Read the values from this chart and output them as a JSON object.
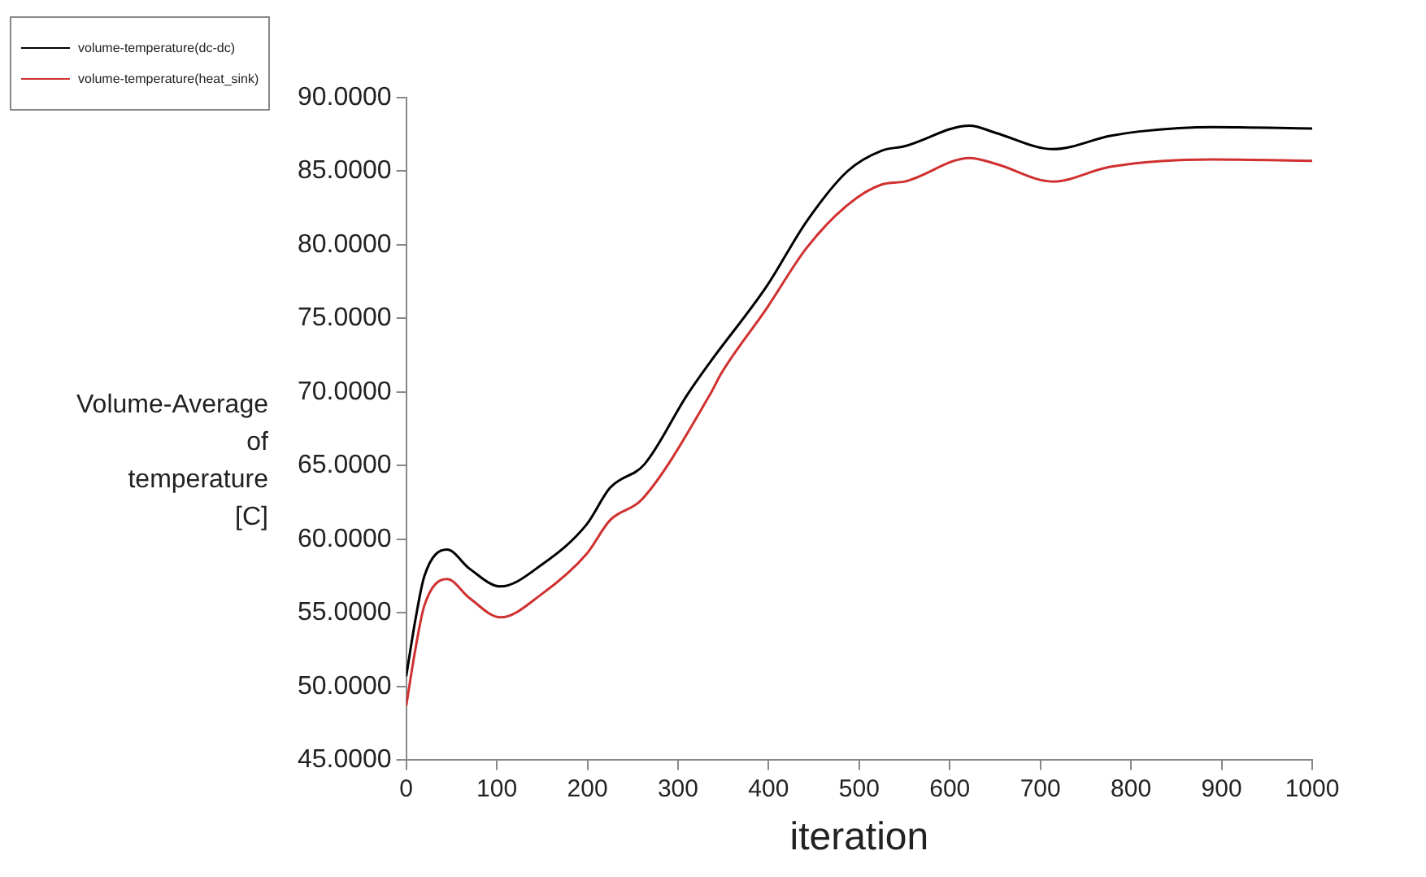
{
  "chart_data": {
    "type": "line",
    "xlabel": "iteration",
    "ylabel": "Volume-Average\nof\ntemperature\n[C]",
    "xlim": [
      0,
      1000
    ],
    "xticks": [
      0,
      100,
      200,
      300,
      400,
      500,
      600,
      700,
      800,
      900,
      1000
    ],
    "ylim": [
      45,
      90
    ],
    "yticks": [
      {
        "value": 45,
        "label": "45.0000"
      },
      {
        "value": 50,
        "label": "50.0000"
      },
      {
        "value": 55,
        "label": "55.0000"
      },
      {
        "value": 60,
        "label": "60.0000"
      },
      {
        "value": 65,
        "label": "65.0000"
      },
      {
        "value": 70,
        "label": "70.0000"
      },
      {
        "value": 75,
        "label": "75.0000"
      },
      {
        "value": 80,
        "label": "80.0000"
      },
      {
        "value": 85,
        "label": "85.0000"
      },
      {
        "value": 90,
        "label": "90.0000"
      }
    ],
    "grid": false,
    "legend": "top left",
    "marker": "none",
    "line_style": "solid",
    "series": [
      {
        "name": "volume-temperature(dc-dc)",
        "color": "#000000",
        "x": [
          0,
          10,
          20,
          45,
          70,
          104,
          150,
          199,
          225,
          263,
          310,
          335,
          398,
          442,
          487,
          525,
          550,
          622,
          651,
          714,
          777,
          809,
          891,
          1000
        ],
        "values": [
          50.7,
          54.5,
          57.5,
          59.3,
          58.0,
          56.8,
          58.3,
          61.0,
          63.5,
          65.1,
          69.8,
          72.0,
          77.2,
          81.6,
          85.0,
          86.4,
          86.7,
          88.1,
          87.6,
          86.5,
          87.4,
          87.7,
          88.0,
          87.9
        ]
      },
      {
        "name": "volume-temperature(heat_sink)",
        "color": "#d03030",
        "x": [
          0,
          10,
          20,
          45,
          70,
          104,
          150,
          199,
          225,
          260,
          335,
          348,
          398,
          442,
          487,
          525,
          550,
          622,
          651,
          714,
          777,
          891,
          1000
        ],
        "values": [
          48.7,
          52.5,
          55.5,
          57.3,
          56.0,
          54.7,
          56.3,
          59.0,
          61.3,
          62.7,
          69.8,
          71.3,
          75.7,
          79.8,
          82.7,
          84.1,
          84.3,
          85.9,
          85.5,
          84.3,
          85.3,
          85.8,
          85.7
        ]
      }
    ]
  }
}
